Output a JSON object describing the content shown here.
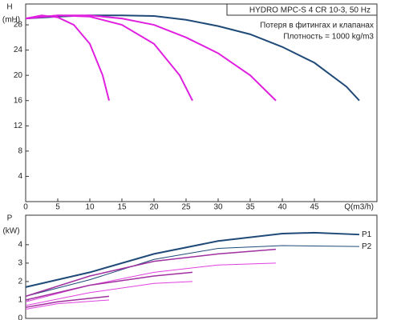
{
  "chart_data": [
    {
      "type": "line",
      "title": "HYDRO MPC-S 4 CR 10-3, 50 Hz",
      "notes": [
        "Потеря в фитингах и клапанах",
        "Плотность = 1000 kg/m3"
      ],
      "ylabel": "H",
      "yunit": "(mH)",
      "xlabel": "Q(m3/h)",
      "xlim": [
        0,
        54.75
      ],
      "ylim": [
        0,
        31.3
      ],
      "xticks": [
        0,
        5,
        10,
        15,
        20,
        25,
        30,
        35,
        40,
        45
      ],
      "yticks": [
        4,
        8,
        12,
        16,
        20,
        24,
        28
      ],
      "series": [
        {
          "color": "#1f4a78",
          "width": 2,
          "x": [
            0,
            5,
            10,
            15,
            20,
            25,
            30,
            35,
            40,
            45,
            50,
            52
          ],
          "values": [
            29,
            29.3,
            29.5,
            29.5,
            29.4,
            28.8,
            27.8,
            26.5,
            24.5,
            22,
            18.2,
            16
          ]
        },
        {
          "color": "#e020e0",
          "width": 2,
          "x": [
            0,
            2.5,
            5,
            7.5,
            10,
            12,
            13
          ],
          "values": [
            29,
            29.5,
            29.2,
            28,
            25,
            20,
            16
          ]
        },
        {
          "color": "#e020e0",
          "width": 2,
          "x": [
            0,
            5,
            10,
            15,
            20,
            24,
            26
          ],
          "values": [
            29,
            29.5,
            29.3,
            28,
            25,
            20,
            16
          ]
        },
        {
          "color": "#e020e0",
          "width": 2,
          "x": [
            0,
            5,
            10,
            15,
            20,
            25,
            30,
            35,
            39
          ],
          "values": [
            29,
            29.5,
            29.5,
            29,
            28,
            26,
            23.5,
            20,
            16
          ]
        }
      ]
    },
    {
      "type": "line",
      "ylabel": "P",
      "yunit": "(kW)",
      "xlim": [
        0,
        54.75
      ],
      "ylim": [
        0,
        5.6
      ],
      "yticks": [
        0,
        1,
        2,
        3,
        4
      ],
      "series": [
        {
          "name": "P1",
          "color": "#1f4a78",
          "width": 2,
          "x": [
            0,
            10,
            20,
            30,
            40,
            45,
            52
          ],
          "values": [
            1.7,
            2.5,
            3.5,
            4.2,
            4.6,
            4.65,
            4.55
          ]
        },
        {
          "name": "P2",
          "color": "#1f4a78",
          "width": 1,
          "x": [
            0,
            10,
            20,
            30,
            40,
            52
          ],
          "values": [
            1.2,
            2.1,
            3.2,
            3.8,
            3.95,
            3.9
          ]
        },
        {
          "color": "#a030a0",
          "width": 1.5,
          "x": [
            0,
            10,
            20,
            30,
            39
          ],
          "values": [
            1.2,
            2.3,
            3.1,
            3.5,
            3.75
          ]
        },
        {
          "color": "#e040e0",
          "width": 1,
          "x": [
            0,
            10,
            20,
            30,
            39
          ],
          "values": [
            0.9,
            1.8,
            2.5,
            2.9,
            3.0
          ]
        },
        {
          "color": "#a030a0",
          "width": 1.5,
          "x": [
            0,
            10,
            20,
            26
          ],
          "values": [
            1.0,
            1.8,
            2.3,
            2.5
          ]
        },
        {
          "color": "#e040e0",
          "width": 1,
          "x": [
            0,
            10,
            20,
            26
          ],
          "values": [
            0.7,
            1.4,
            1.9,
            2.0
          ]
        },
        {
          "color": "#a030a0",
          "width": 1.5,
          "x": [
            0,
            5,
            13
          ],
          "values": [
            0.6,
            0.9,
            1.2
          ]
        },
        {
          "color": "#e040e0",
          "width": 1,
          "x": [
            0,
            5,
            13
          ],
          "values": [
            0.5,
            0.8,
            1.0
          ]
        }
      ]
    }
  ]
}
